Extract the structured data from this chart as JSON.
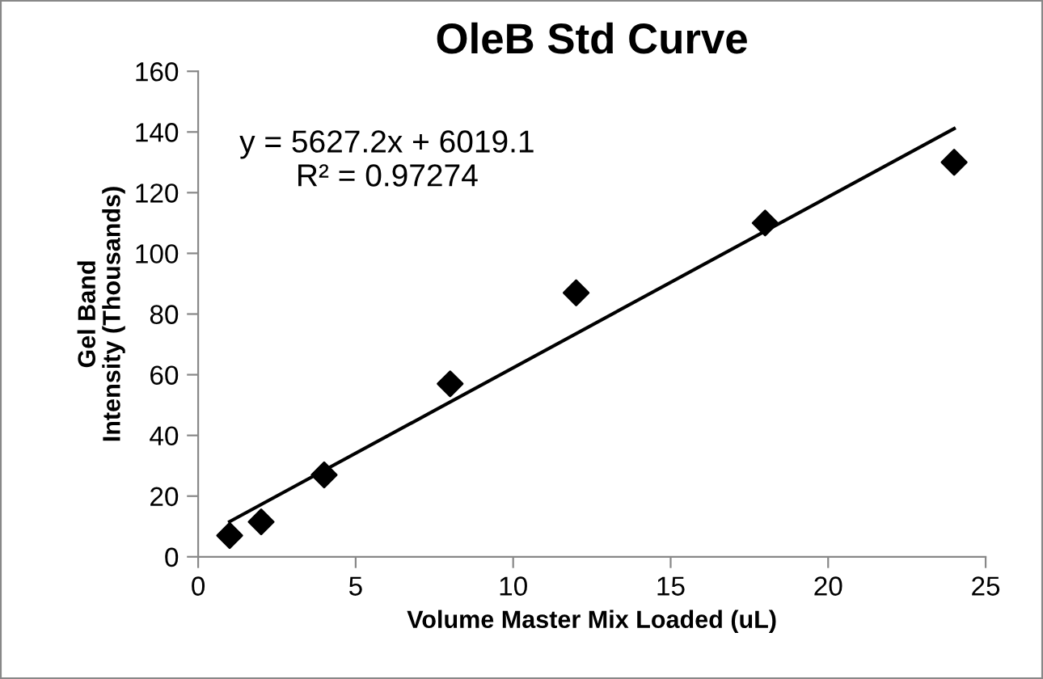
{
  "chart_data": {
    "type": "scatter",
    "title": "OleB Std Curve",
    "xlabel": "Volume Master Mix Loaded (uL)",
    "ylabel": "Gel Band\nIntensity (Thousands)",
    "x": [
      1,
      2,
      4,
      8,
      12,
      18,
      24
    ],
    "series": [
      {
        "color": "#000000",
        "marker": "diamond",
        "values": [
          7,
          11.5,
          27,
          57,
          87,
          110,
          130
        ]
      },
      {
        "type": "line",
        "color": "#000000",
        "marker": "none",
        "x": [
          1,
          24
        ],
        "values": [
          11.6,
          141.1
        ]
      }
    ],
    "annotations": [
      "y = 5627.2x + 6019.1\nR² = 0.97274"
    ],
    "xlim": [
      0,
      25
    ],
    "xticks": [
      0,
      5,
      10,
      15,
      20,
      25
    ],
    "ylim": [
      0,
      160
    ],
    "yticks": [
      0,
      20,
      40,
      60,
      80,
      100,
      120,
      140,
      160
    ],
    "grid": false,
    "legend": false
  }
}
